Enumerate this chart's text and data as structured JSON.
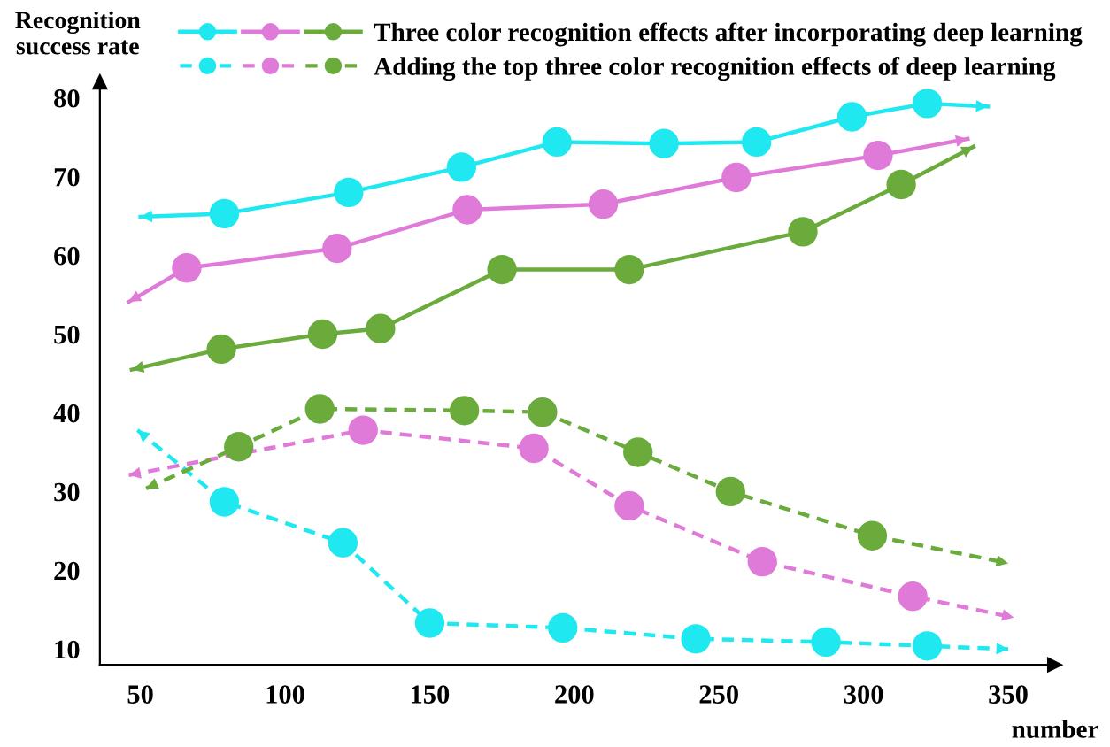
{
  "chart_data": {
    "type": "line",
    "xlabel": "number",
    "ylabel": "Recognition\nsuccess rate",
    "xlim": [
      36,
      366
    ],
    "ylim": [
      8,
      82
    ],
    "xticks": [
      50,
      100,
      150,
      200,
      250,
      300,
      350
    ],
    "yticks": [
      10,
      20,
      30,
      40,
      50,
      60,
      70,
      80
    ],
    "grid": false,
    "legend": "top",
    "marker": "circle",
    "series": [
      {
        "color": "#1fe8f0",
        "line_style": "solid",
        "x": [
          50,
          79,
          122,
          161,
          194,
          231,
          263,
          296,
          322,
          343
        ],
        "values": [
          64.9,
          65.3,
          68.0,
          71.2,
          74.4,
          74.2,
          74.4,
          77.6,
          79.3,
          78.9
        ]
      },
      {
        "color": "#e07ad8",
        "line_style": "solid",
        "x": [
          46,
          66,
          118,
          163,
          210,
          256,
          305,
          336
        ],
        "values": [
          54.1,
          58.4,
          60.9,
          65.8,
          66.5,
          69.9,
          72.7,
          74.8
        ]
      },
      {
        "name": "Three color recognition effects after incorporating deep learning",
        "color": "#6aab3c",
        "line_style": "solid",
        "x": [
          47,
          78,
          113,
          133,
          175,
          219,
          279,
          313,
          338
        ],
        "values": [
          45.5,
          48.1,
          50.0,
          50.7,
          58.2,
          58.2,
          63.0,
          69.0,
          73.8
        ]
      },
      {
        "color": "#1fe8f0",
        "line_style": "dashed",
        "x": [
          49,
          79,
          120,
          150,
          196,
          242,
          287,
          322,
          350
        ],
        "values": [
          37.8,
          28.7,
          23.5,
          13.3,
          12.7,
          11.3,
          10.9,
          10.4,
          10.0
        ]
      },
      {
        "color": "#e07ad8",
        "line_style": "dashed",
        "x": [
          46,
          127,
          186,
          219,
          265,
          317,
          352
        ],
        "values": [
          32.1,
          37.8,
          35.5,
          28.2,
          21.1,
          16.7,
          14.0
        ]
      },
      {
        "name": "Adding the top three color recognition effects of deep learning",
        "color": "#6aab3c",
        "line_style": "dashed",
        "x": [
          52,
          84,
          112,
          162,
          189,
          222,
          254,
          303,
          350
        ],
        "values": [
          30.4,
          35.7,
          40.5,
          40.3,
          40.1,
          35.0,
          30.0,
          24.4,
          20.9
        ]
      }
    ]
  }
}
